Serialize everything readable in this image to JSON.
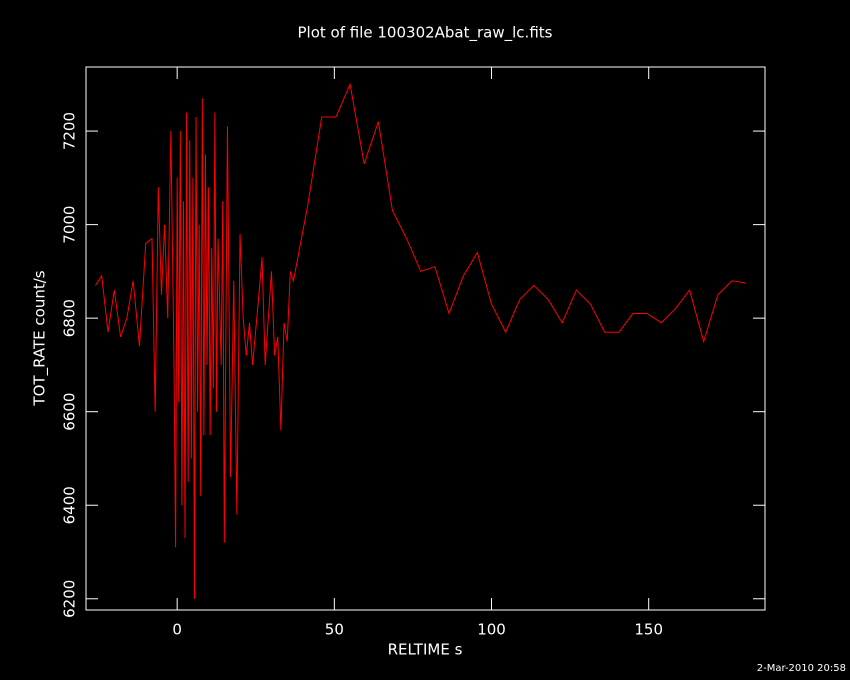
{
  "chart_data": {
    "type": "line",
    "title": "Plot of file 100302Abat_raw_lc.fits",
    "xlabel": "RELTIME  s",
    "ylabel": "TOT_RATE  count/s",
    "footer": "2-Mar-2010 20:58",
    "xlim": [
      -29,
      187
    ],
    "ylim": [
      6176,
      7337
    ],
    "xticks": [
      0,
      50,
      100,
      150
    ],
    "yticks": [
      6200,
      6400,
      6600,
      6800,
      7000,
      7200
    ],
    "grid": false,
    "series": [
      {
        "name": "TOT_RATE",
        "color": "#ff0000",
        "x": [
          -26,
          -24,
          -22,
          -20,
          -18,
          -16,
          -14,
          -12,
          -10,
          -8,
          -7,
          -6,
          -5,
          -4,
          -3,
          -2,
          -1,
          -0.5,
          0,
          0.5,
          1,
          1.5,
          2,
          2.5,
          3,
          3.5,
          4,
          4.5,
          5,
          5.5,
          6,
          6.5,
          7,
          7.5,
          8,
          8.5,
          9,
          9.5,
          10,
          10.5,
          11,
          11.5,
          12,
          12.5,
          13,
          14,
          14.5,
          15,
          16,
          17,
          18,
          19,
          20,
          21,
          22,
          23,
          24,
          26,
          27,
          28,
          30,
          31,
          32,
          33,
          34,
          35,
          36,
          37,
          41.5,
          46,
          50.5,
          55,
          59.5,
          64,
          68.5,
          73,
          77.5,
          82,
          86.5,
          91,
          95.5,
          100,
          104.5,
          109,
          113.5,
          118,
          122.5,
          127,
          131.5,
          136,
          140.5,
          145,
          149.5,
          154,
          158.5,
          163,
          167.5,
          172,
          176.5,
          181
        ],
        "values": [
          6870,
          6890,
          6770,
          6860,
          6760,
          6800,
          6880,
          6740,
          6960,
          6970,
          6600,
          7080,
          6850,
          7000,
          6800,
          7200,
          6700,
          6310,
          7100,
          6620,
          7200,
          6400,
          7050,
          6330,
          7240,
          6450,
          7180,
          6500,
          7100,
          6200,
          7230,
          6600,
          7000,
          6420,
          7270,
          6550,
          7150,
          6700,
          7080,
          6550,
          6950,
          6650,
          7240,
          6600,
          6970,
          6700,
          7050,
          6320,
          7210,
          6460,
          6880,
          6380,
          6980,
          6800,
          6720,
          6790,
          6700,
          6850,
          6930,
          6700,
          6900,
          6720,
          6760,
          6560,
          6790,
          6750,
          6900,
          6880,
          7040,
          7230,
          7230,
          7300,
          7130,
          7220,
          7030,
          6970,
          6900,
          6910,
          6810,
          6890,
          6940,
          6830,
          6770,
          6840,
          6870,
          6840,
          6790,
          6860,
          6830,
          6770,
          6770,
          6810,
          6810,
          6790,
          6820,
          6860,
          6750,
          6850,
          6880,
          6875
        ]
      }
    ]
  }
}
